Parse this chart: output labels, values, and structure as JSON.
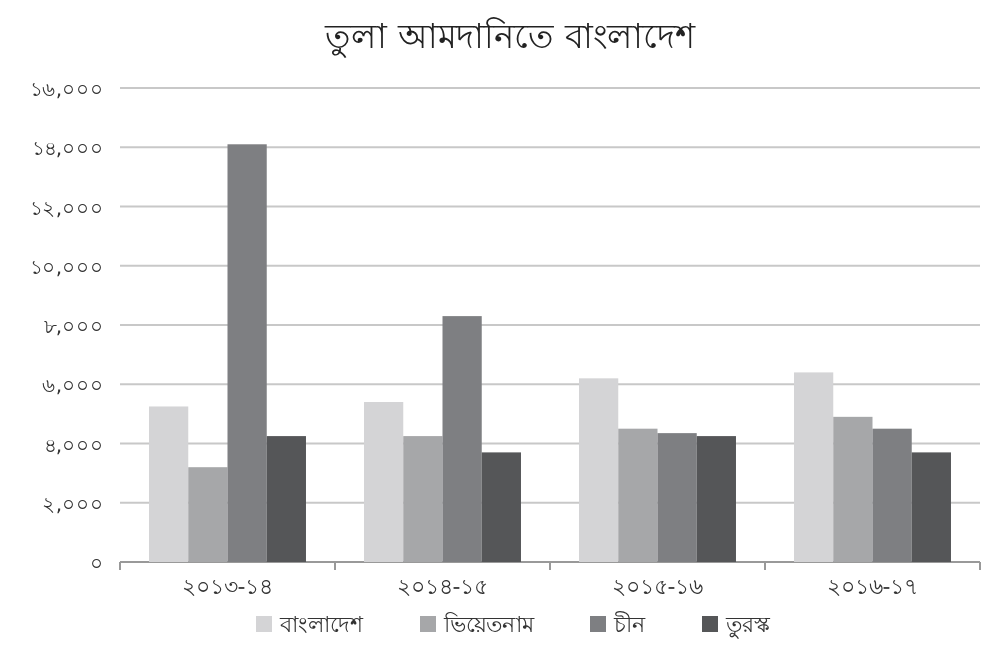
{
  "chart_data": {
    "type": "bar",
    "title": "তুলা আমদানিতে বাংলাদেশ",
    "categories": [
      "২০১৩-১৪",
      "২০১৪-১৫",
      "২০১৫-১৬",
      "২০১৬-১৭"
    ],
    "series": [
      {
        "name": "বাংলাদেশ",
        "color": "#d4d4d6",
        "values": [
          5250,
          5400,
          6200,
          6400
        ]
      },
      {
        "name": "ভিয়েতনাম",
        "color": "#a6a7a9",
        "values": [
          3200,
          4250,
          4500,
          4900
        ]
      },
      {
        "name": "চীন",
        "color": "#7e7f82",
        "values": [
          14100,
          8300,
          4350,
          4500
        ]
      },
      {
        "name": "তুরস্ক",
        "color": "#555658",
        "values": [
          4250,
          3700,
          4250,
          3700
        ]
      }
    ],
    "ylim": [
      0,
      16000
    ],
    "yticks": [
      {
        "value": 0,
        "label": "০"
      },
      {
        "value": 2000,
        "label": "২,০০০"
      },
      {
        "value": 4000,
        "label": "৪,০০০"
      },
      {
        "value": 6000,
        "label": "৬,০০০"
      },
      {
        "value": 8000,
        "label": "৮,০০০"
      },
      {
        "value": 10000,
        "label": "১০,০০০"
      },
      {
        "value": 12000,
        "label": "১২,০০০"
      },
      {
        "value": 14000,
        "label": "১৪,০০০"
      },
      {
        "value": 16000,
        "label": "১৬,০০০"
      }
    ],
    "grid": "y",
    "legend": "bottom"
  }
}
